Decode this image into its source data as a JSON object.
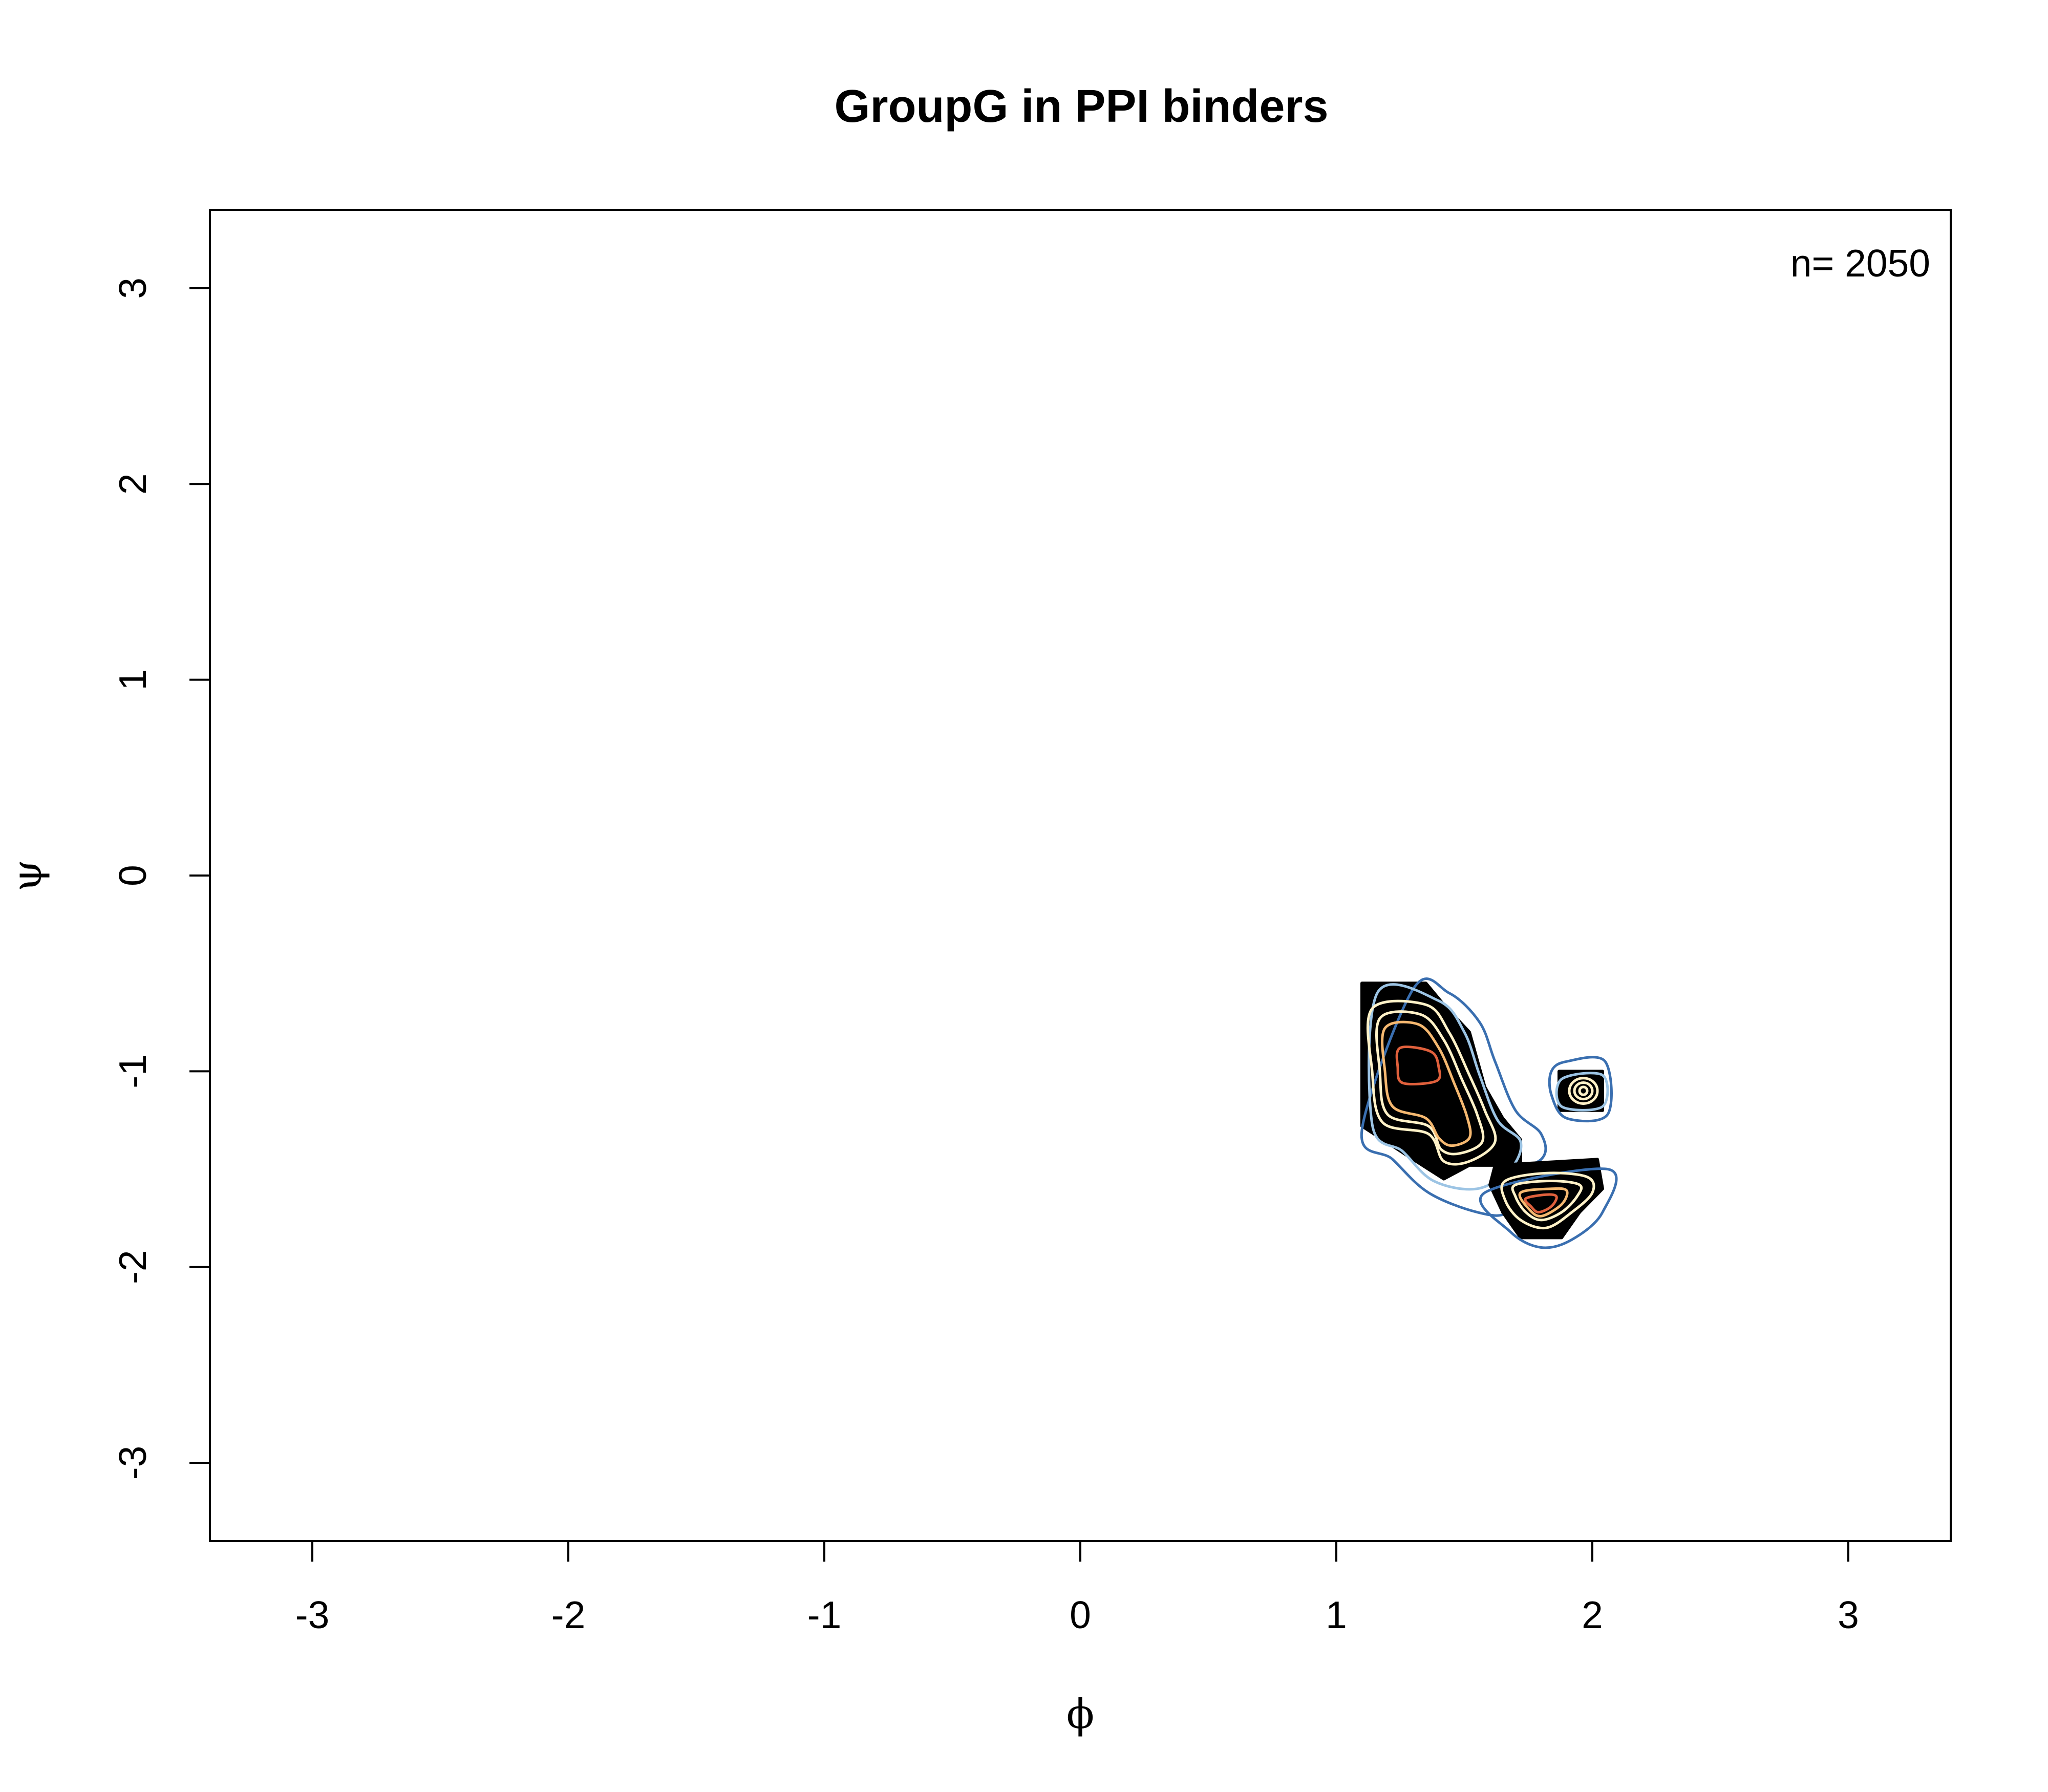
{
  "chart_data": {
    "type": "contour",
    "title": "GroupG  in PPI binders",
    "xlabel": "ϕ",
    "ylabel": "ψ",
    "xlim": [
      -3.4,
      3.4
    ],
    "ylim": [
      -3.4,
      3.4
    ],
    "x_ticks": [
      -3,
      -2,
      -1,
      0,
      1,
      2,
      3
    ],
    "y_ticks": [
      -3,
      -2,
      -1,
      0,
      1,
      2,
      3
    ],
    "grid": false,
    "annotation": "n= 2050",
    "colors": {
      "black_fill": "#000000",
      "contour_blue_dark": "#3a6fb0",
      "contour_blue_light": "#9cc4e4",
      "contour_cream": "#fff2c8",
      "contour_orange": "#f5b870",
      "contour_red": "#e0603c"
    },
    "regions": [
      {
        "name": "main-beta-region",
        "fill": [
          [
            1.1,
            -0.55
          ],
          [
            1.35,
            -0.55
          ],
          [
            1.42,
            -0.66
          ],
          [
            1.52,
            -0.8
          ],
          [
            1.58,
            -1.08
          ],
          [
            1.65,
            -1.24
          ],
          [
            1.72,
            -1.35
          ],
          [
            1.72,
            -1.48
          ],
          [
            1.52,
            -1.48
          ],
          [
            1.42,
            -1.55
          ],
          [
            1.3,
            -1.45
          ],
          [
            1.1,
            -1.28
          ]
        ],
        "contours": [
          {
            "color": "contour_blue_dark",
            "points": [
              [
                1.1,
                -1.3
              ],
              [
                1.22,
                -1.45
              ],
              [
                1.36,
                -1.62
              ],
              [
                1.55,
                -1.72
              ],
              [
                1.66,
                -1.72
              ],
              [
                1.62,
                -1.55
              ],
              [
                1.8,
                -1.45
              ],
              [
                1.8,
                -1.32
              ],
              [
                1.7,
                -1.2
              ],
              [
                1.62,
                -0.95
              ],
              [
                1.56,
                -0.75
              ],
              [
                1.44,
                -0.6
              ],
              [
                1.3,
                -0.58
              ]
            ]
          },
          {
            "color": "contour_blue_light",
            "points": [
              [
                1.14,
                -1.27
              ],
              [
                1.26,
                -1.41
              ],
              [
                1.38,
                -1.56
              ],
              [
                1.55,
                -1.6
              ],
              [
                1.68,
                -1.5
              ],
              [
                1.72,
                -1.36
              ],
              [
                1.63,
                -1.25
              ],
              [
                1.56,
                -1.02
              ],
              [
                1.5,
                -0.8
              ],
              [
                1.4,
                -0.64
              ],
              [
                1.16,
                -0.6
              ]
            ]
          },
          {
            "color": "contour_cream",
            "points": [
              [
                1.14,
                -0.68
              ],
              [
                1.35,
                -0.66
              ],
              [
                1.44,
                -0.8
              ],
              [
                1.52,
                -1.02
              ],
              [
                1.58,
                -1.2
              ],
              [
                1.62,
                -1.36
              ],
              [
                1.52,
                -1.46
              ],
              [
                1.42,
                -1.46
              ],
              [
                1.36,
                -1.32
              ],
              [
                1.18,
                -1.26
              ],
              [
                1.14,
                -1.0
              ]
            ]
          },
          {
            "color": "contour_cream",
            "points": [
              [
                1.17,
                -0.73
              ],
              [
                1.33,
                -0.71
              ],
              [
                1.42,
                -0.84
              ],
              [
                1.49,
                -1.04
              ],
              [
                1.55,
                -1.22
              ],
              [
                1.57,
                -1.36
              ],
              [
                1.48,
                -1.42
              ],
              [
                1.41,
                -1.4
              ],
              [
                1.36,
                -1.28
              ],
              [
                1.2,
                -1.22
              ],
              [
                1.17,
                -1.0
              ]
            ]
          },
          {
            "color": "contour_orange",
            "points": [
              [
                1.19,
                -0.78
              ],
              [
                1.32,
                -0.76
              ],
              [
                1.4,
                -0.88
              ],
              [
                1.46,
                -1.06
              ],
              [
                1.51,
                -1.23
              ],
              [
                1.52,
                -1.34
              ],
              [
                1.45,
                -1.38
              ],
              [
                1.4,
                -1.34
              ],
              [
                1.35,
                -1.24
              ],
              [
                1.22,
                -1.18
              ],
              [
                1.19,
                -1.0
              ]
            ]
          },
          {
            "color": "contour_red",
            "points": [
              [
                1.25,
                -0.88
              ],
              [
                1.37,
                -0.9
              ],
              [
                1.4,
                -0.98
              ],
              [
                1.39,
                -1.05
              ],
              [
                1.26,
                -1.06
              ],
              [
                1.24,
                -0.98
              ]
            ]
          }
        ]
      },
      {
        "name": "lower-right-region",
        "fill": [
          [
            1.62,
            -1.48
          ],
          [
            2.02,
            -1.45
          ],
          [
            2.04,
            -1.6
          ],
          [
            1.95,
            -1.72
          ],
          [
            1.88,
            -1.85
          ],
          [
            1.72,
            -1.85
          ],
          [
            1.65,
            -1.72
          ],
          [
            1.6,
            -1.58
          ]
        ],
        "contours": [
          {
            "color": "contour_blue_dark",
            "points": [
              [
                1.58,
                -1.62
              ],
              [
                1.68,
                -1.82
              ],
              [
                1.8,
                -1.9
              ],
              [
                1.92,
                -1.86
              ],
              [
                2.04,
                -1.72
              ],
              [
                2.06,
                -1.5
              ]
            ]
          },
          {
            "color": "contour_cream",
            "points": [
              [
                1.66,
                -1.56
              ],
              [
                1.82,
                -1.52
              ],
              [
                1.98,
                -1.54
              ],
              [
                2.0,
                -1.62
              ],
              [
                1.92,
                -1.72
              ],
              [
                1.82,
                -1.8
              ],
              [
                1.72,
                -1.76
              ],
              [
                1.66,
                -1.66
              ]
            ]
          },
          {
            "color": "contour_cream",
            "points": [
              [
                1.7,
                -1.58
              ],
              [
                1.84,
                -1.56
              ],
              [
                1.95,
                -1.58
              ],
              [
                1.94,
                -1.64
              ],
              [
                1.88,
                -1.72
              ],
              [
                1.8,
                -1.76
              ],
              [
                1.74,
                -1.72
              ],
              [
                1.7,
                -1.64
              ]
            ]
          },
          {
            "color": "contour_orange",
            "points": [
              [
                1.72,
                -1.62
              ],
              [
                1.84,
                -1.6
              ],
              [
                1.9,
                -1.61
              ],
              [
                1.88,
                -1.68
              ],
              [
                1.8,
                -1.74
              ],
              [
                1.75,
                -1.7
              ]
            ]
          },
          {
            "color": "contour_red",
            "points": [
              [
                1.74,
                -1.65
              ],
              [
                1.82,
                -1.63
              ],
              [
                1.86,
                -1.64
              ],
              [
                1.84,
                -1.69
              ],
              [
                1.79,
                -1.72
              ],
              [
                1.76,
                -1.69
              ]
            ]
          }
        ]
      },
      {
        "name": "right-island",
        "fill": [
          [
            1.87,
            -1.0
          ],
          [
            2.04,
            -1.0
          ],
          [
            2.04,
            -1.2
          ],
          [
            1.87,
            -1.2
          ]
        ],
        "contours": [
          {
            "color": "contour_blue_dark",
            "points": [
              [
                1.84,
                -1.0
              ],
              [
                1.9,
                -0.95
              ],
              [
                2.05,
                -0.95
              ],
              [
                2.06,
                -1.22
              ],
              [
                1.9,
                -1.24
              ],
              [
                1.84,
                -1.12
              ]
            ]
          },
          {
            "color": "contour_blue_light",
            "points": [
              [
                1.88,
                -1.04
              ],
              [
                2.04,
                -1.02
              ],
              [
                2.04,
                -1.18
              ],
              [
                1.88,
                -1.18
              ]
            ]
          }
        ],
        "rings": [
          {
            "cx": 1.965,
            "cy": -1.1,
            "rx": 0.055,
            "ry": 0.065,
            "color": "contour_cream"
          },
          {
            "cx": 1.965,
            "cy": -1.1,
            "rx": 0.035,
            "ry": 0.042,
            "color": "contour_cream"
          },
          {
            "cx": 1.965,
            "cy": -1.1,
            "rx": 0.015,
            "ry": 0.02,
            "color": "contour_cream"
          }
        ]
      }
    ]
  }
}
